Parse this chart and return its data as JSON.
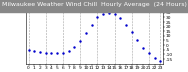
{
  "title": "Milwaukee Weather Wind Chill  Hourly Average  (24 Hours)",
  "hours": [
    0,
    1,
    2,
    3,
    4,
    5,
    6,
    7,
    8,
    9,
    10,
    11,
    12,
    13,
    14,
    15,
    16,
    17,
    18,
    19,
    20,
    21,
    22,
    23
  ],
  "wind_chill": [
    -5,
    -6,
    -7,
    -8,
    -9,
    -9,
    -8,
    -6,
    -2,
    4,
    13,
    22,
    30,
    34,
    35,
    34,
    29,
    22,
    14,
    5,
    -3,
    -9,
    -14,
    -17
  ],
  "dot_color": "#0000cc",
  "bg_color": "#ffffff",
  "title_bg": "#888888",
  "title_text_color": "#ffffff",
  "grid_color": "#999999",
  "grid_hours": [
    0,
    3,
    6,
    9,
    12,
    15,
    18,
    21,
    23
  ],
  "ylim": [
    -20,
    40
  ],
  "ytick_values": [
    -15,
    -10,
    -5,
    0,
    5,
    10,
    15,
    20,
    25,
    30,
    35,
    40
  ],
  "ytick_labels": [
    "-15",
    "-10",
    "-5",
    "0",
    "5",
    "10",
    "15",
    "20",
    "25",
    "30",
    "35",
    "40"
  ],
  "title_fontsize": 4.5,
  "tick_fontsize": 3.2,
  "marker_size": 1.5
}
